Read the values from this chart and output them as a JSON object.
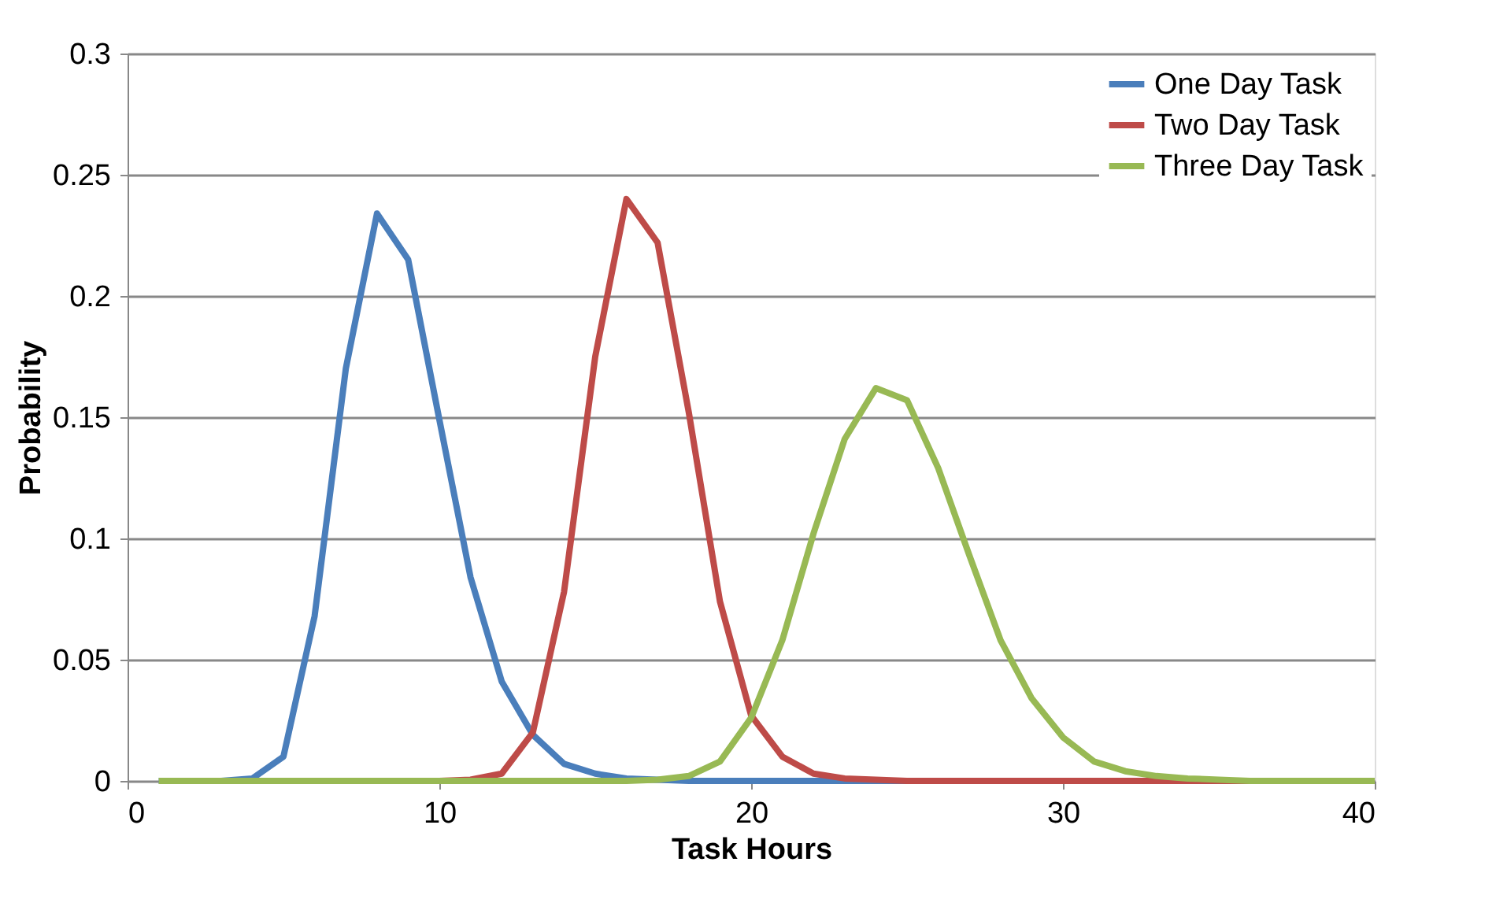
{
  "chart_data": {
    "type": "line",
    "xlabel": "Task Hours",
    "ylabel": "Probability",
    "x": [
      1,
      2,
      3,
      4,
      5,
      6,
      7,
      8,
      9,
      10,
      11,
      12,
      13,
      14,
      15,
      16,
      17,
      18,
      19,
      20,
      21,
      22,
      23,
      24,
      25,
      26,
      27,
      28,
      29,
      30,
      31,
      32,
      33,
      34,
      35,
      36,
      37,
      38,
      39,
      40
    ],
    "series": [
      {
        "name": "One Day Task",
        "color": "#4a7ebb",
        "values": [
          0,
          0,
          0,
          0.001,
          0.01,
          0.068,
          0.17,
          0.234,
          0.215,
          0.149,
          0.084,
          0.041,
          0.019,
          0.007,
          0.003,
          0.001,
          0.0005,
          0,
          0,
          0,
          0,
          0,
          0,
          0,
          0,
          0,
          null,
          null,
          null,
          null,
          null,
          null,
          null,
          null,
          null,
          null,
          null,
          null,
          null,
          null
        ]
      },
      {
        "name": "Two Day Task",
        "color": "#be4b48",
        "values": [
          null,
          null,
          null,
          null,
          null,
          null,
          null,
          null,
          0,
          0,
          0.0005,
          0.003,
          0.02,
          0.078,
          0.175,
          0.24,
          0.222,
          0.152,
          0.074,
          0.027,
          0.01,
          0.003,
          0.001,
          0.0005,
          0,
          0,
          0,
          0,
          0,
          0,
          0,
          0,
          0,
          0,
          0,
          0,
          0,
          null,
          null,
          null
        ]
      },
      {
        "name": "Three Day Task",
        "color": "#98b954",
        "values": [
          0,
          0,
          0,
          0,
          0,
          0,
          0,
          0,
          0,
          0,
          0,
          0,
          0,
          0,
          0,
          0,
          0.0005,
          0.002,
          0.008,
          0.026,
          0.058,
          0.102,
          0.141,
          0.162,
          0.157,
          0.129,
          0.093,
          0.058,
          0.034,
          0.018,
          0.008,
          0.004,
          0.002,
          0.001,
          0.0005,
          0,
          0,
          0,
          0,
          0
        ]
      }
    ],
    "xlim": [
      0,
      40
    ],
    "xticks": [
      0,
      10,
      20,
      30,
      40
    ],
    "ylim": [
      0,
      0.3
    ],
    "yticks": [
      0,
      0.05,
      0.1,
      0.15,
      0.2,
      0.25,
      0.3
    ],
    "grid": "y",
    "legend": "top right",
    "marker": "none",
    "line_style": "solid"
  }
}
